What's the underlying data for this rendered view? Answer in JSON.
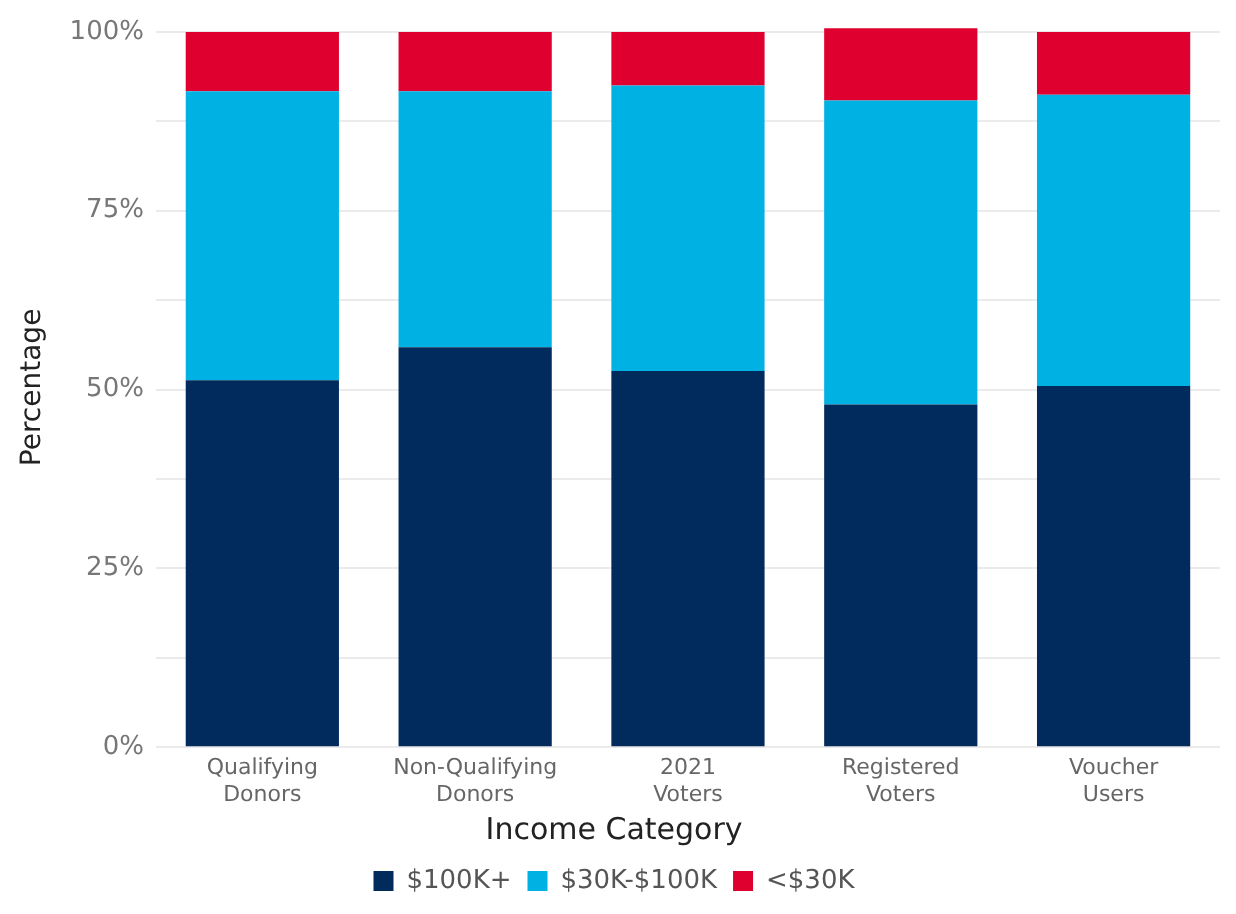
{
  "chart_data": {
    "type": "bar",
    "stacked": true,
    "ylabel": "Percentage",
    "legend_title": "Income Category",
    "legend": "bottom",
    "grid": "y",
    "categories": [
      "Qualifying\nDonors",
      "Non-Qualifying\nDonors",
      "2021\nVoters",
      "Registered\nVoters",
      "Voucher\nUsers"
    ],
    "series": [
      {
        "name": "$100K+",
        "color": "#002b5c",
        "values": [
          51.3,
          55.9,
          52.6,
          47.9,
          50.5
        ]
      },
      {
        "name": "$30K-$100K",
        "color": "#00b2e3",
        "values": [
          40.4,
          35.8,
          39.9,
          42.5,
          40.7
        ]
      },
      {
        "name": "<$30K",
        "color": "#e0002f",
        "values": [
          8.3,
          8.3,
          7.5,
          10.1,
          8.8
        ]
      }
    ],
    "ylim": [
      0,
      100.6
    ],
    "yticks": [
      {
        "value": 0,
        "label": "0%"
      },
      {
        "value": 12.5,
        "label": null
      },
      {
        "value": 25,
        "label": "25%"
      },
      {
        "value": 37.5,
        "label": null
      },
      {
        "value": 50,
        "label": "50%"
      },
      {
        "value": 62.5,
        "label": null
      },
      {
        "value": 75,
        "label": "75%"
      },
      {
        "value": 87.5,
        "label": null
      },
      {
        "value": 100,
        "label": "100%"
      }
    ]
  }
}
